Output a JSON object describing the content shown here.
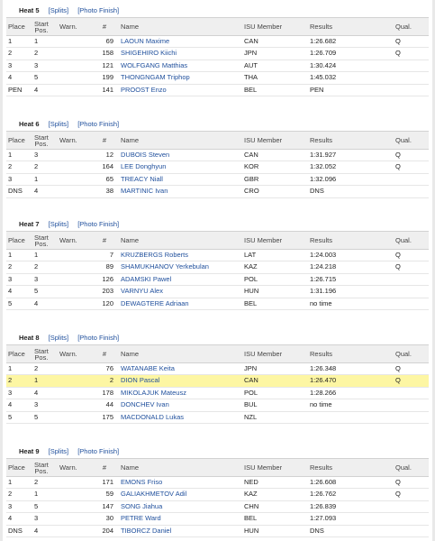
{
  "headers": {
    "place": "Place",
    "start_line1": "Start",
    "start_line2": "Pos.",
    "warn": "Warn.",
    "num": "#",
    "name": "Name",
    "isu": "ISU Member",
    "results": "Results",
    "qual": "Qual."
  },
  "links": {
    "splits": "[Splits]",
    "photo": "[Photo Finish]"
  },
  "colors": {
    "link": "#1f4f9c",
    "highlight": "#fdf6a3",
    "header_bg": "#efefef"
  },
  "heats": [
    {
      "title": "Heat 5",
      "rows": [
        {
          "place": "1",
          "start": "1",
          "num": "69",
          "name": "LAOUN Maxime",
          "isu": "CAN",
          "result": "1:26.682",
          "qual": "Q"
        },
        {
          "place": "2",
          "start": "2",
          "num": "158",
          "name": "SHIGEHIRO Kiichi",
          "isu": "JPN",
          "result": "1:26.709",
          "qual": "Q"
        },
        {
          "place": "3",
          "start": "3",
          "num": "121",
          "name": "WOLFGANG Matthias",
          "isu": "AUT",
          "result": "1:30.424",
          "qual": ""
        },
        {
          "place": "4",
          "start": "5",
          "num": "199",
          "name": "THONGNGAM Triphop",
          "isu": "THA",
          "result": "1:45.032",
          "qual": ""
        },
        {
          "place": "PEN",
          "start": "4",
          "num": "141",
          "name": "PROOST Enzo",
          "isu": "BEL",
          "result": "PEN",
          "qual": ""
        }
      ]
    },
    {
      "title": "Heat 6",
      "rows": [
        {
          "place": "1",
          "start": "3",
          "num": "12",
          "name": "DUBOIS Steven",
          "isu": "CAN",
          "result": "1:31.927",
          "qual": "Q"
        },
        {
          "place": "2",
          "start": "2",
          "num": "164",
          "name": "LEE Donghyun",
          "isu": "KOR",
          "result": "1:32.052",
          "qual": "Q"
        },
        {
          "place": "3",
          "start": "1",
          "num": "65",
          "name": "TREACY Niall",
          "isu": "GBR",
          "result": "1:32.096",
          "qual": ""
        },
        {
          "place": "DNS",
          "start": "4",
          "num": "38",
          "name": "MARTINIC Ivan",
          "isu": "CRO",
          "result": "DNS",
          "qual": ""
        }
      ]
    },
    {
      "title": "Heat 7",
      "rows": [
        {
          "place": "1",
          "start": "1",
          "num": "7",
          "name": "KRUZBERGS Roberts",
          "isu": "LAT",
          "result": "1:24.003",
          "qual": "Q"
        },
        {
          "place": "2",
          "start": "2",
          "num": "89",
          "name": "SHAMUKHANOV Yerkebulan",
          "isu": "KAZ",
          "result": "1:24.218",
          "qual": "Q"
        },
        {
          "place": "3",
          "start": "3",
          "num": "126",
          "name": "ADAMSKI Pawel",
          "isu": "POL",
          "result": "1:26.715",
          "qual": ""
        },
        {
          "place": "4",
          "start": "5",
          "num": "203",
          "name": "VARNYU Alex",
          "isu": "HUN",
          "result": "1:31.196",
          "qual": ""
        },
        {
          "place": "5",
          "start": "4",
          "num": "120",
          "name": "DEWAGTERE Adriaan",
          "isu": "BEL",
          "result": "no time",
          "qual": ""
        }
      ]
    },
    {
      "title": "Heat 8",
      "rows": [
        {
          "place": "1",
          "start": "2",
          "num": "76",
          "name": "WATANABE Keita",
          "isu": "JPN",
          "result": "1:26.348",
          "qual": "Q"
        },
        {
          "place": "2",
          "start": "1",
          "num": "2",
          "name": "DION Pascal",
          "isu": "CAN",
          "result": "1:26.470",
          "qual": "Q",
          "highlight": true
        },
        {
          "place": "3",
          "start": "4",
          "num": "178",
          "name": "MIKOLAJUK Mateusz",
          "isu": "POL",
          "result": "1:28.266",
          "qual": ""
        },
        {
          "place": "4",
          "start": "3",
          "num": "44",
          "name": "DONCHEV Ivan",
          "isu": "BUL",
          "result": "no time",
          "qual": ""
        },
        {
          "place": "5",
          "start": "5",
          "num": "175",
          "name": "MACDONALD Lukas",
          "isu": "NZL",
          "result": "",
          "qual": ""
        }
      ]
    },
    {
      "title": "Heat 9",
      "rows": [
        {
          "place": "1",
          "start": "2",
          "num": "171",
          "name": "EMONS Friso",
          "isu": "NED",
          "result": "1:26.608",
          "qual": "Q"
        },
        {
          "place": "2",
          "start": "1",
          "num": "59",
          "name": "GALIAKHMETOV Adil",
          "isu": "KAZ",
          "result": "1:26.762",
          "qual": "Q"
        },
        {
          "place": "3",
          "start": "5",
          "num": "147",
          "name": "SONG Jiahua",
          "isu": "CHN",
          "result": "1:26.839",
          "qual": ""
        },
        {
          "place": "4",
          "start": "3",
          "num": "30",
          "name": "PETRE Ward",
          "isu": "BEL",
          "result": "1:27.093",
          "qual": ""
        },
        {
          "place": "DNS",
          "start": "4",
          "num": "204",
          "name": "TIBORCZ Daniel",
          "isu": "HUN",
          "result": "DNS",
          "qual": ""
        }
      ]
    }
  ]
}
